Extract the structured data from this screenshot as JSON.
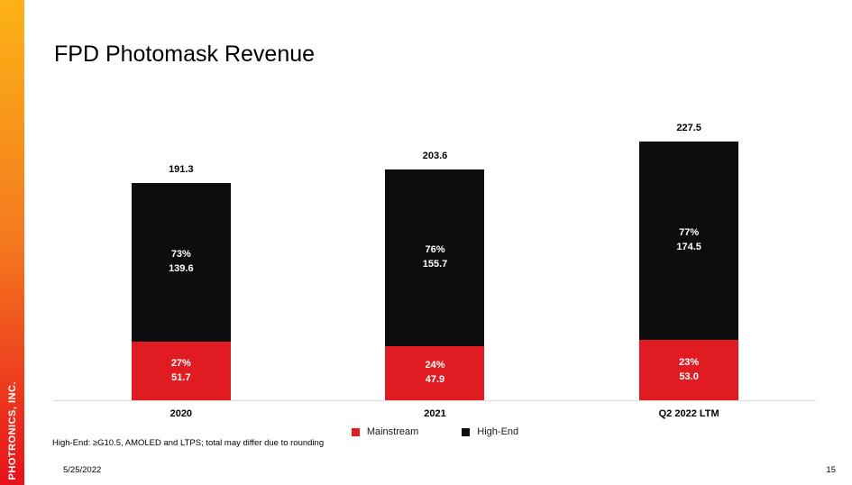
{
  "slide": {
    "title": "FPD Photomask Revenue",
    "sidebar_brand": "PHOTRONICS, INC.",
    "footnote": "High-End: ≥G10.5, AMOLED and LTPS; total may differ due to rounding",
    "date": "5/25/2022",
    "page_number": "15"
  },
  "colors": {
    "mainstream_red": "#e11b22",
    "high_end_black": "#0d0d0d",
    "sidebar_gradient_top": "#fcb316",
    "sidebar_gradient_mid": "#f4791f",
    "sidebar_gradient_bottom": "#e8111c",
    "axis_line": "#d9d9d9"
  },
  "chart_data": {
    "type": "bar",
    "stacked": true,
    "title": "FPD Photomask Revenue",
    "categories": [
      "2020",
      "2021",
      "Q2 2022 LTM"
    ],
    "series": [
      {
        "name": "Mainstream",
        "color": "#e11b22",
        "values": [
          51.7,
          47.9,
          53.0
        ],
        "value_labels": [
          "51.7",
          "47.9",
          "53.0"
        ],
        "pct_labels": [
          "27%",
          "24%",
          "23%"
        ]
      },
      {
        "name": "High-End",
        "color": "#0d0d0d",
        "values": [
          139.6,
          155.7,
          174.5
        ],
        "value_labels": [
          "139.6",
          "155.7",
          "174.5"
        ],
        "pct_labels": [
          "73%",
          "76%",
          "77%"
        ]
      }
    ],
    "totals": [
      191.3,
      203.6,
      227.5
    ],
    "total_labels": [
      "191.3",
      "203.6",
      "227.5"
    ],
    "ylim": [
      0,
      240
    ],
    "grid": false,
    "legend_position": "bottom"
  },
  "legend": [
    {
      "label": "Mainstream",
      "color": "#e11b22"
    },
    {
      "label": "High-End",
      "color": "#0d0d0d"
    }
  ]
}
